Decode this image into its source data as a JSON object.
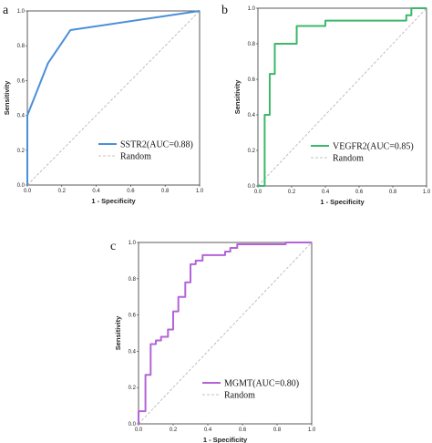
{
  "chart_data": [
    {
      "type": "line",
      "panel_label": "a",
      "xlabel": "1 - Specificity",
      "ylabel": "Sensitivity",
      "xlim": [
        0,
        1
      ],
      "ylim": [
        0,
        1
      ],
      "xticks": [
        "0.0",
        "0.2",
        "0.4",
        "0.6",
        "0.8",
        "1.0"
      ],
      "yticks": [
        "0.0",
        "0.2",
        "0.4",
        "0.6",
        "0.8",
        "1.0"
      ],
      "legend_position": "bottom-right",
      "series": [
        {
          "name": "SSTR2(AUC=0.88)",
          "color": "#4a8fd9",
          "style": "solid",
          "x": [
            0,
            0,
            0.12,
            0.25,
            1.0
          ],
          "y": [
            0,
            0.4,
            0.7,
            0.89,
            1.0
          ]
        },
        {
          "name": "Random",
          "color": "#b0b0b0",
          "style": "dashed",
          "x": [
            0,
            1
          ],
          "y": [
            0,
            1
          ]
        }
      ]
    },
    {
      "type": "line",
      "panel_label": "b",
      "xlabel": "1 - Specificity",
      "ylabel": "Sensitivity",
      "xlim": [
        0,
        1
      ],
      "ylim": [
        0,
        1
      ],
      "xticks": [
        "0.0",
        "0.2",
        "0.4",
        "0.6",
        "0.8",
        "1.0"
      ],
      "yticks": [
        "0.0",
        "0.2",
        "0.4",
        "0.6",
        "0.8",
        "1.0"
      ],
      "legend_position": "bottom-right",
      "series": [
        {
          "name": "VEGFR2(AUC=0.85)",
          "color": "#3cb86a",
          "style": "solid",
          "x": [
            0,
            0.04,
            0.04,
            0.07,
            0.07,
            0.1,
            0.1,
            0.13,
            0.13,
            0.23,
            0.23,
            0.4,
            0.4,
            0.88,
            0.88,
            0.91,
            0.91,
            1.0
          ],
          "y": [
            0,
            0,
            0.4,
            0.4,
            0.63,
            0.63,
            0.8,
            0.8,
            0.8,
            0.8,
            0.9,
            0.9,
            0.93,
            0.93,
            0.96,
            0.96,
            1.0,
            1.0
          ]
        },
        {
          "name": "Random",
          "color": "#b0b0b0",
          "style": "dashed",
          "x": [
            0,
            1
          ],
          "y": [
            0,
            1
          ]
        }
      ]
    },
    {
      "type": "line",
      "panel_label": "c",
      "xlabel": "1 - Specificity",
      "ylabel": "Sensitivity",
      "xlim": [
        0,
        1
      ],
      "ylim": [
        0,
        1
      ],
      "xticks": [
        "0.0",
        "0.2",
        "0.4",
        "0.6",
        "0.8",
        "1.0"
      ],
      "yticks": [
        "0.0",
        "0.2",
        "0.4",
        "0.6",
        "0.8",
        "1.0"
      ],
      "legend_position": "bottom-right",
      "series": [
        {
          "name": "MGMT(AUC=0.80)",
          "color": "#b464d8",
          "style": "solid",
          "x": [
            0,
            0,
            0.04,
            0.04,
            0.07,
            0.07,
            0.1,
            0.1,
            0.13,
            0.13,
            0.17,
            0.17,
            0.2,
            0.2,
            0.23,
            0.23,
            0.27,
            0.27,
            0.3,
            0.3,
            0.33,
            0.33,
            0.37,
            0.37,
            0.5,
            0.5,
            0.53,
            0.53,
            0.57,
            0.57,
            0.85,
            0.85,
            1.0
          ],
          "y": [
            0,
            0.07,
            0.07,
            0.27,
            0.27,
            0.44,
            0.44,
            0.46,
            0.46,
            0.48,
            0.48,
            0.52,
            0.52,
            0.62,
            0.62,
            0.7,
            0.7,
            0.78,
            0.78,
            0.88,
            0.88,
            0.9,
            0.9,
            0.93,
            0.93,
            0.95,
            0.95,
            0.97,
            0.97,
            0.99,
            0.99,
            1.0,
            1.0
          ]
        },
        {
          "name": "Random",
          "color": "#b0b0b0",
          "style": "dashed",
          "x": [
            0,
            1
          ],
          "y": [
            0,
            1
          ]
        }
      ]
    }
  ]
}
